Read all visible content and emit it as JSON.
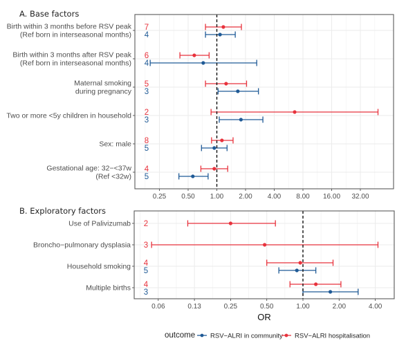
{
  "chart_data": [
    {
      "type": "forest",
      "title": "A. Base factors",
      "xscale": "log2",
      "xlim": [
        0.18,
        64
      ],
      "xticks": [
        "0.25",
        "0.50",
        "1.00",
        "2.00",
        "4.00",
        "8.00",
        "16.00",
        "32.00"
      ],
      "xtick_values": [
        0.25,
        0.5,
        1,
        2,
        4,
        8,
        16,
        32
      ],
      "reference_line": 1,
      "rows": [
        {
          "label": [
            "Birth within 3 months before RSV peak",
            "(Ref born in interseasonal months)"
          ],
          "hospitalisation": {
            "n": "7",
            "or": 1.17,
            "lo": 0.76,
            "hi": 1.81
          },
          "community": {
            "n": "4",
            "or": 1.08,
            "lo": 0.76,
            "hi": 1.56
          }
        },
        {
          "label": [
            "Birth within 3 months after RSV peak",
            "(Ref born in interseasonal months)"
          ],
          "hospitalisation": {
            "n": "6",
            "or": 0.58,
            "lo": 0.41,
            "hi": 0.83
          },
          "community": {
            "n": "4",
            "or": 0.72,
            "lo": 0.2,
            "hi": 2.62
          }
        },
        {
          "label": [
            "Maternal smoking",
            "during pregnancy"
          ],
          "hospitalisation": {
            "n": "5",
            "or": 1.25,
            "lo": 0.76,
            "hi": 2.05
          },
          "community": {
            "n": "3",
            "or": 1.66,
            "lo": 1.03,
            "hi": 2.73
          }
        },
        {
          "label": [
            "Two or more <5y children in household"
          ],
          "hospitalisation": {
            "n": "2",
            "or": 6.55,
            "lo": 0.87,
            "hi": 49.0
          },
          "community": {
            "n": "3",
            "or": 1.79,
            "lo": 1.06,
            "hi": 3.04
          }
        },
        {
          "label": [
            "Sex: male"
          ],
          "hospitalisation": {
            "n": "8",
            "or": 1.13,
            "lo": 0.88,
            "hi": 1.48
          },
          "community": {
            "n": "5",
            "or": 0.94,
            "lo": 0.69,
            "hi": 1.28
          }
        },
        {
          "label": [
            "Gestational age: 32−<37w",
            "(Ref <32w)"
          ],
          "hospitalisation": {
            "n": "4",
            "or": 0.94,
            "lo": 0.68,
            "hi": 1.3
          },
          "community": {
            "n": "5",
            "or": 0.56,
            "lo": 0.4,
            "hi": 0.81
          }
        }
      ]
    },
    {
      "type": "forest",
      "title": "B. Exploratory factors",
      "xscale": "log2",
      "xlim": [
        0.044,
        6.0
      ],
      "xticks": [
        "0.06",
        "0.13",
        "0.25",
        "0.50",
        "1.00",
        "2.00",
        "4.00"
      ],
      "xtick_values": [
        0.0625,
        0.125,
        0.25,
        0.5,
        1,
        2,
        4
      ],
      "reference_line": 1,
      "xlabel": "OR",
      "rows": [
        {
          "label": [
            "Use of Palivizumab"
          ],
          "hospitalisation": {
            "n": "2",
            "or": 0.25,
            "lo": 0.11,
            "hi": 0.59
          },
          "community": null
        },
        {
          "label": [
            "Broncho−pulmonary dysplasia"
          ],
          "hospitalisation": {
            "n": "3",
            "or": 0.48,
            "lo": 0.055,
            "hi": 4.21
          },
          "community": null
        },
        {
          "label": [
            "Household smoking"
          ],
          "hospitalisation": {
            "n": "4",
            "or": 0.95,
            "lo": 0.5,
            "hi": 1.78
          },
          "community": {
            "n": "5",
            "or": 0.89,
            "lo": 0.63,
            "hi": 1.28
          }
        },
        {
          "label": [
            "Multiple births"
          ],
          "hospitalisation": {
            "n": "4",
            "or": 1.28,
            "lo": 0.78,
            "hi": 2.07
          },
          "community": {
            "n": "3",
            "or": 1.69,
            "lo": 1.0,
            "hi": 2.88
          }
        }
      ]
    }
  ],
  "legend": {
    "title": "outcome",
    "position": "bottom",
    "items": [
      {
        "key": "community",
        "label": "RSV−ALRI in community",
        "color": "#1f5a96"
      },
      {
        "key": "hospitalisation",
        "label": "RSV−ALRI hospitalisation",
        "color": "#e8323c"
      }
    ]
  },
  "colors": {
    "community": "#1f5a96",
    "hospitalisation": "#e8323c",
    "grid": "#ebebeb",
    "frame": "#5a5a5a"
  }
}
